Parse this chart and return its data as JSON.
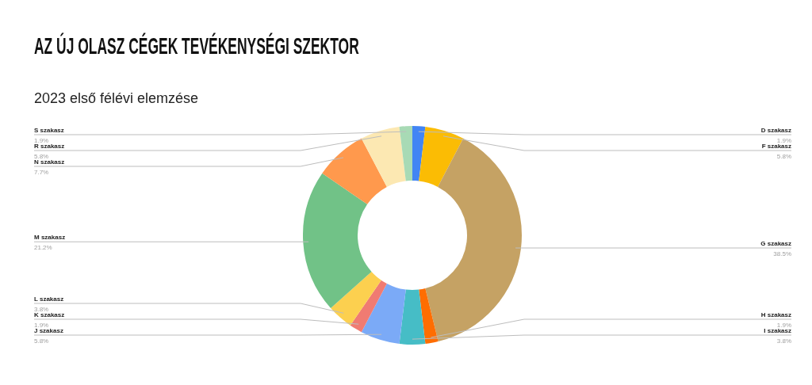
{
  "chart_data": {
    "type": "donut",
    "title": "AZ ÚJ OLASZ CÉGEK TEVÉKENYSÉGI SZEKTOR",
    "subtitle": "2023 első félévi elemzése",
    "categories": [
      "D szakasz",
      "F szakasz",
      "G szakasz",
      "H szakasz",
      "I szakasz",
      "J szakasz",
      "K szakasz",
      "L szakasz",
      "M szakasz",
      "N szakasz",
      "R szakasz",
      "S szakasz"
    ],
    "values": [
      1.9,
      5.8,
      38.5,
      1.9,
      3.8,
      5.8,
      1.9,
      3.8,
      21.2,
      7.7,
      5.8,
      1.9
    ],
    "value_labels": [
      "1.9%",
      "5.8%",
      "38.5%",
      "1.9%",
      "3.8%",
      "5.8%",
      "1.9%",
      "3.8%",
      "21.2%",
      "7.7%",
      "5.8%",
      "1.9%"
    ],
    "colors": [
      "#4285f4",
      "#fbbc04",
      "#c5a264",
      "#ff6d01",
      "#46bdc6",
      "#7baaf7",
      "#f07b72",
      "#fcd04f",
      "#71c287",
      "#ff994d",
      "#fce8b2",
      "#a8dab5"
    ],
    "legend": false
  }
}
